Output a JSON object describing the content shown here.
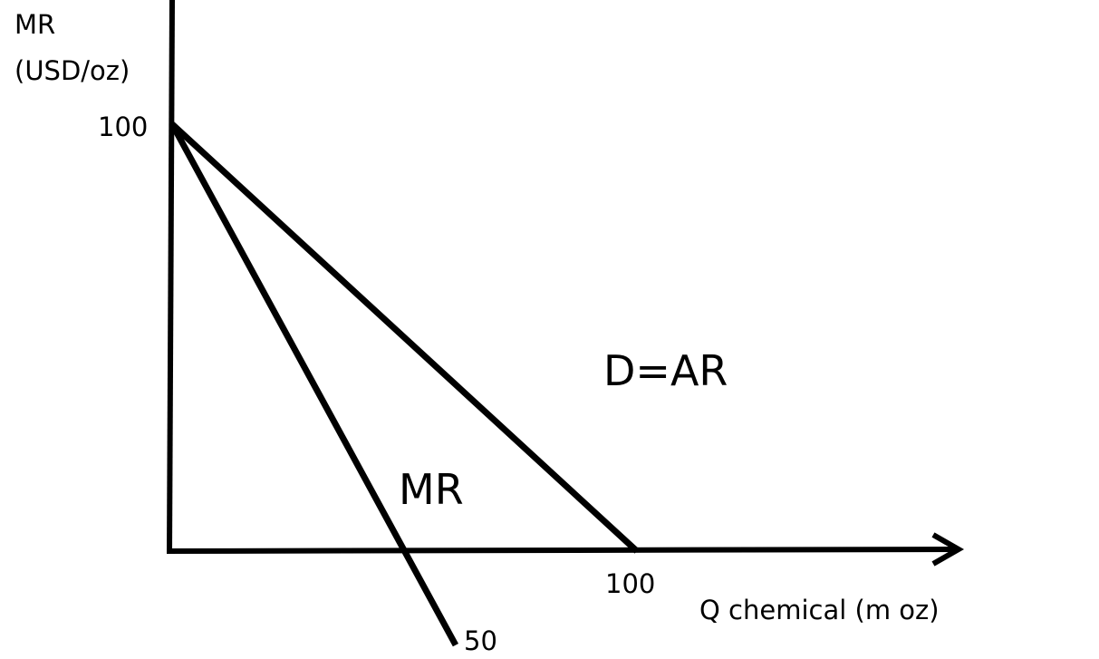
{
  "chart_data": {
    "type": "line",
    "ylabel_line1": "MR",
    "ylabel_line2": "(USD/oz)",
    "xlabel": "Q chemical (m oz)",
    "y_tick": "100",
    "x_tick_demand": "100",
    "x_tick_mr": "50",
    "xlim": [
      0,
      100
    ],
    "ylim": [
      0,
      100
    ],
    "series": [
      {
        "name": "D=AR",
        "points": [
          [
            0,
            100
          ],
          [
            100,
            0
          ]
        ]
      },
      {
        "name": "MR",
        "points": [
          [
            0,
            100
          ],
          [
            50,
            0
          ]
        ],
        "extends_below_axis": true
      }
    ],
    "colors": {
      "line": "#000000",
      "background": "#ffffff"
    }
  }
}
